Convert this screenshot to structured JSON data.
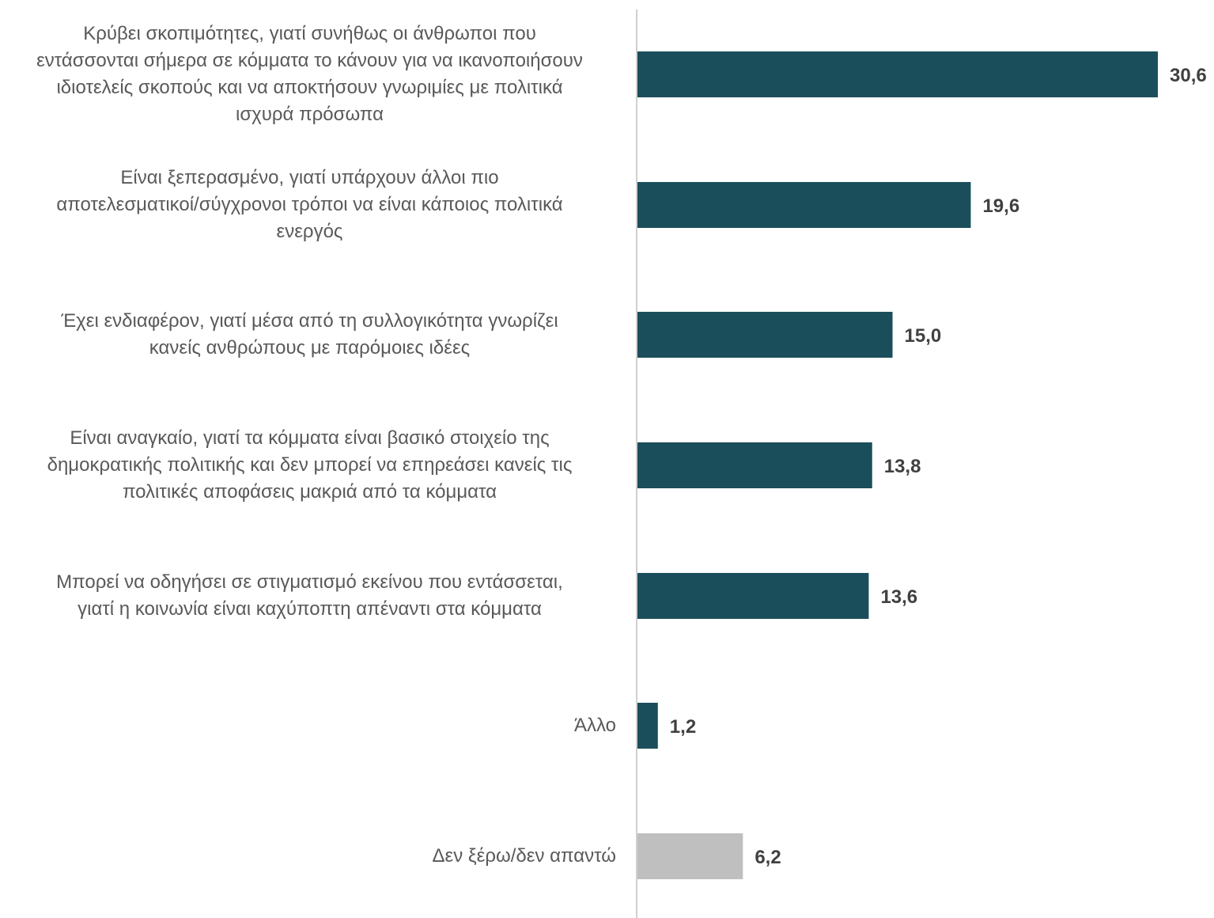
{
  "chart_data": {
    "type": "bar",
    "orientation": "horizontal",
    "title": "",
    "xlabel": "",
    "ylabel": "",
    "xlim": [
      0,
      30.6
    ],
    "grid": false,
    "legend": "none",
    "categories": [
      "Κρύβει σκοπιμότητες, γιατί συνήθως οι άνθρωποι που εντάσσονται σήμερα σε κόμματα το κάνουν για να ικανοποιήσουν ιδιοτελείς σκοπούς και να αποκτήσουν γνωριμίες με πολιτικά ισχυρά πρόσωπα",
      "Είναι ξεπερασμένο, γιατί υπάρχουν άλλοι πιο αποτελεσματικοί/σύγχρονοι τρόποι να είναι κάποιος πολιτικά ενεργός",
      "Έχει ενδιαφέρον, γιατί μέσα από τη συλλογικότητα γνωρίζει κανείς ανθρώπους με παρόμοιες ιδέες",
      "Είναι αναγκαίο, γιατί τα κόμματα είναι βασικό στοιχείο της δημοκρατικής πολιτικής και δεν μπορεί να επηρεάσει κανείς τις πολιτικές αποφάσεις μακριά από τα κόμματα",
      "Μπορεί να οδηγήσει σε στιγματισμό εκείνου που εντάσσεται, γιατί η κοινωνία είναι καχύποπτη απέναντι στα κόμματα",
      "Άλλο",
      "Δεν ξέρω/δεν απαντώ"
    ],
    "category_lines": [
      [
        "Κρύβει σκοπιμότητες, γιατί συνήθως οι άνθρωποι που",
        "εντάσσονται σήμερα σε κόμματα το κάνουν για να ικανοποιήσουν",
        "ιδιοτελείς σκοπούς και να αποκτήσουν γνωριμίες με πολιτικά",
        "ισχυρά πρόσωπα"
      ],
      [
        "Είναι ξεπερασμένο, γιατί υπάρχουν άλλοι πιο",
        "αποτελεσματικοί/σύγχρονοι τρόποι να είναι κάποιος πολιτικά",
        "ενεργός"
      ],
      [
        "Έχει ενδιαφέρον, γιατί μέσα από τη συλλογικότητα γνωρίζει",
        "κανείς ανθρώπους με παρόμοιες ιδέες"
      ],
      [
        "Είναι αναγκαίο, γιατί τα κόμματα είναι βασικό στοιχείο της",
        "δημοκρατικής πολιτικής και δεν μπορεί να επηρεάσει κανείς τις",
        "πολιτικές αποφάσεις μακριά από τα κόμματα"
      ],
      [
        "Μπορεί να οδηγήσει σε στιγματισμό εκείνου που εντάσσεται,",
        "γιατί η κοινωνία είναι καχύποπτη απέναντι στα κόμματα"
      ],
      [
        "Άλλο"
      ],
      [
        "Δεν ξέρω/δεν απαντώ"
      ]
    ],
    "values": [
      30.6,
      19.6,
      15.0,
      13.8,
      13.6,
      1.2,
      6.2
    ],
    "value_labels": [
      "30,6",
      "19,6",
      "15,0",
      "13,8",
      "13,6",
      "1,2",
      "6,2"
    ],
    "bar_colors": [
      "#1b4e5b",
      "#1b4e5b",
      "#1b4e5b",
      "#1b4e5b",
      "#1b4e5b",
      "#1b4e5b",
      "#bfbfbf"
    ],
    "axis_color": "#d0d0d0"
  }
}
